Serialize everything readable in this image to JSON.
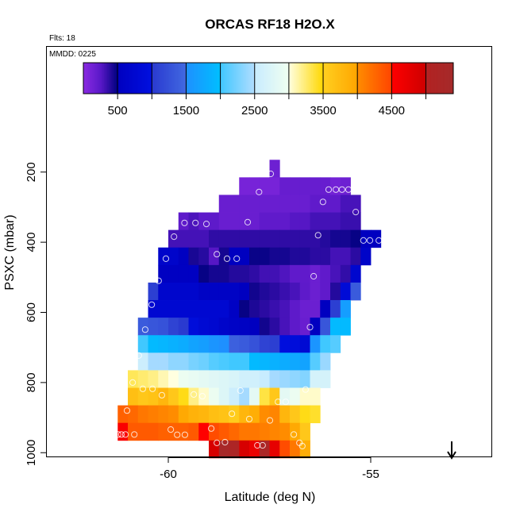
{
  "chart_data": {
    "type": "heatmap",
    "title": "ORCAS RF18 H2O.X",
    "flights_label": "Flts: 18",
    "date_label": "MMDD: 0225",
    "xlabel": "Latitude (deg N)",
    "ylabel": "PSXC (mbar)",
    "xlim": [
      -63.02,
      -52.0
    ],
    "ylim": [
      1013,
      -157
    ],
    "y_reversed": true,
    "x_ticks": [
      -60,
      -55
    ],
    "y_ticks": [
      200,
      400,
      600,
      800,
      1000
    ],
    "cell_width_deg": 0.25,
    "cell_height_mbar": 50,
    "colorbar": {
      "range": [
        0,
        5400
      ],
      "tick_values": [
        500,
        1000,
        1500,
        2000,
        2500,
        3000,
        3500,
        4000,
        4500,
        5000
      ],
      "labels": [
        "500",
        "1500",
        "2500",
        "3500",
        "4500"
      ],
      "label_values": [
        500,
        1500,
        2500,
        3500,
        4500
      ]
    },
    "colormap": [
      [
        0,
        "#8a2be2"
      ],
      [
        250,
        "#5a18c8"
      ],
      [
        499,
        "#000080"
      ],
      [
        500,
        "#0000c0"
      ],
      [
        999,
        "#0010e0"
      ],
      [
        1000,
        "#2a3ad0"
      ],
      [
        1499,
        "#4169e1"
      ],
      [
        1500,
        "#1e90ff"
      ],
      [
        1999,
        "#00bfff"
      ],
      [
        2000,
        "#40c8ff"
      ],
      [
        2499,
        "#b0dcff"
      ],
      [
        2500,
        "#c8ecff"
      ],
      [
        2999,
        "#f0fff0"
      ],
      [
        3000,
        "#ffffe0"
      ],
      [
        3499,
        "#ffd700"
      ],
      [
        3500,
        "#ffd020"
      ],
      [
        3999,
        "#ffa500"
      ],
      [
        4000,
        "#ff8c00"
      ],
      [
        4499,
        "#ff4500"
      ],
      [
        4500,
        "#ff0000"
      ],
      [
        4999,
        "#cd0000"
      ],
      [
        5000,
        "#b22222"
      ],
      [
        5400,
        "#a52a2a"
      ]
    ],
    "rows": [
      {
        "p": 190,
        "lat0": -57.5,
        "values": [
          150
        ]
      },
      {
        "p": 240,
        "lat0": -58.25,
        "values": [
          100,
          100,
          100,
          100,
          180,
          180,
          180,
          180,
          180,
          120,
          150
        ]
      },
      {
        "p": 290,
        "lat0": -58.75,
        "values": [
          170,
          170,
          170,
          170,
          170,
          170,
          170,
          170,
          170,
          220,
          220,
          220,
          300,
          300
        ]
      },
      {
        "p": 340,
        "lat0": -59.75,
        "values": [
          230,
          290,
          230,
          230,
          170,
          170,
          170,
          170,
          220,
          220,
          220,
          260,
          260,
          310,
          310,
          310,
          340,
          340
        ]
      },
      {
        "p": 390,
        "lat0": -60.0,
        "values": [
          310,
          310,
          310,
          310,
          370,
          370,
          370,
          370,
          370,
          370,
          370,
          370,
          370,
          370,
          370,
          400,
          440,
          440,
          480,
          500,
          500
        ]
      },
      {
        "p": 440,
        "lat0": -60.25,
        "values": [
          650,
          650,
          520,
          430,
          390,
          260,
          440,
          500,
          500,
          470,
          470,
          440,
          440,
          410,
          410,
          380,
          380,
          310,
          310,
          380,
          620
        ]
      },
      {
        "p": 490,
        "lat0": -60.25,
        "values": [
          530,
          530,
          530,
          530,
          480,
          440,
          440,
          400,
          400,
          370,
          320,
          320,
          280,
          220,
          220,
          160,
          220,
          300,
          360,
          720
        ]
      },
      {
        "p": 540,
        "lat0": -60.5,
        "values": [
          1050,
          680,
          680,
          680,
          680,
          580,
          580,
          580,
          580,
          500,
          450,
          410,
          380,
          340,
          300,
          230,
          160,
          220,
          400,
          850,
          1350
        ]
      },
      {
        "p": 590,
        "lat0": -60.5,
        "values": [
          760,
          760,
          760,
          760,
          760,
          760,
          760,
          760,
          560,
          480,
          420,
          380,
          340,
          300,
          230,
          160,
          160,
          500,
          1050,
          1650
        ]
      },
      {
        "p": 640,
        "lat0": -60.75,
        "values": [
          1350,
          1300,
          1250,
          1100,
          1000,
          900,
          800,
          750,
          650,
          600,
          550,
          500,
          450,
          380,
          300,
          230,
          170,
          500,
          1300,
          1950,
          1950
        ]
      },
      {
        "p": 690,
        "lat0": -60.75,
        "values": [
          2000,
          1950,
          1900,
          1850,
          1800,
          1700,
          1650,
          1550,
          1500,
          1400,
          1350,
          1250,
          1100,
          1050,
          950,
          900,
          800,
          1550,
          2000,
          2100
        ]
      },
      {
        "p": 740,
        "lat0": -60.75,
        "values": [
          2550,
          2450,
          2450,
          2350,
          2350,
          2250,
          2200,
          2100,
          2050,
          2000,
          2000,
          1950,
          1900,
          1850,
          1800,
          1750,
          1700,
          2100,
          2400
        ]
      },
      {
        "p": 790,
        "lat0": -61.0,
        "values": [
          3300,
          3250,
          3200,
          3100,
          3000,
          2950,
          2900,
          2850,
          2800,
          2750,
          2700,
          2600,
          2600,
          2500,
          2450,
          2400,
          2350,
          2300,
          2650,
          2650
        ]
      },
      {
        "p": 840,
        "lat0": -61.0,
        "values": [
          3700,
          3600,
          3650,
          3800,
          3600,
          3450,
          3200,
          3050,
          2950,
          2750,
          2550,
          2450,
          2850,
          3350,
          3600,
          2850,
          2950,
          3050,
          3050
        ]
      },
      {
        "p": 890,
        "lat0": -61.25,
        "values": [
          4300,
          4250,
          4150,
          4100,
          4050,
          4000,
          3950,
          3850,
          3800,
          3700,
          3650,
          3550,
          3800,
          3900,
          4000,
          4050,
          3800,
          3600,
          3450,
          3400
        ]
      },
      {
        "p": 940,
        "lat0": -61.25,
        "values": [
          4550,
          4350,
          4350,
          4350,
          4300,
          4300,
          4300,
          4350,
          4500,
          4450,
          4350,
          4250,
          4150,
          4150,
          4100,
          4050,
          4000,
          3950,
          3600
        ]
      },
      {
        "p": 990,
        "lat0": -59.0,
        "values": [
          4900,
          5300,
          5150,
          4900,
          4700,
          5200,
          4750,
          4450,
          4150,
          3900
        ]
      }
    ],
    "points": [
      [
        -57.47,
        205
      ],
      [
        -57.76,
        257
      ],
      [
        -56.04,
        250
      ],
      [
        -55.86,
        250
      ],
      [
        -55.71,
        250
      ],
      [
        -55.55,
        250
      ],
      [
        -56.18,
        285
      ],
      [
        -55.37,
        314
      ],
      [
        -59.6,
        345
      ],
      [
        -59.33,
        345
      ],
      [
        -59.06,
        348
      ],
      [
        -58.04,
        343
      ],
      [
        -59.86,
        384
      ],
      [
        -56.3,
        380
      ],
      [
        -55.18,
        395
      ],
      [
        -55.02,
        395
      ],
      [
        -54.8,
        395
      ],
      [
        -60.06,
        447
      ],
      [
        -58.8,
        434
      ],
      [
        -58.55,
        447
      ],
      [
        -58.31,
        447
      ],
      [
        -60.24,
        510
      ],
      [
        -56.41,
        497
      ],
      [
        -60.41,
        578
      ],
      [
        -60.57,
        649
      ],
      [
        -56.5,
        642
      ],
      [
        -60.73,
        723
      ],
      [
        -60.88,
        800
      ],
      [
        -60.63,
        818
      ],
      [
        -60.39,
        818
      ],
      [
        -60.16,
        836
      ],
      [
        -59.37,
        834
      ],
      [
        -59.16,
        839
      ],
      [
        -58.22,
        823
      ],
      [
        -56.61,
        820
      ],
      [
        -57.29,
        855
      ],
      [
        -57.1,
        855
      ],
      [
        -61.02,
        880
      ],
      [
        -58.43,
        889
      ],
      [
        -58.0,
        904
      ],
      [
        -57.49,
        908
      ],
      [
        -61.24,
        948
      ],
      [
        -61.16,
        948
      ],
      [
        -61.06,
        948
      ],
      [
        -60.84,
        948
      ],
      [
        -59.94,
        934
      ],
      [
        -59.78,
        949
      ],
      [
        -59.59,
        949
      ],
      [
        -58.94,
        931
      ],
      [
        -56.9,
        948
      ],
      [
        -58.8,
        972
      ],
      [
        -58.6,
        970
      ],
      [
        -57.8,
        979
      ],
      [
        -57.67,
        979
      ],
      [
        -56.76,
        972
      ],
      [
        -56.69,
        981
      ]
    ],
    "arrow": {
      "lat": -53.0,
      "direction": "down"
    },
    "point_color": "#ffffff",
    "grid": false
  }
}
